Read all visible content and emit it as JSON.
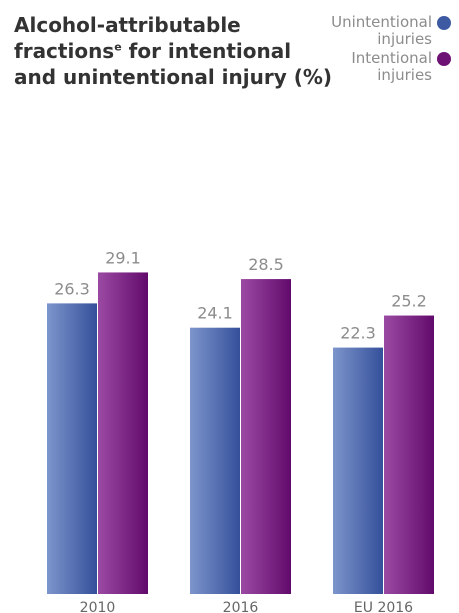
{
  "title_main": "Alcohol-attributable fractions",
  "title_sup": "e",
  "title_rest": " for intentional and unintentional injury (%)",
  "legend": [
    {
      "label": "Unintentional injuries",
      "color": "#3d5aa3"
    },
    {
      "label": "Intentional injuries",
      "color": "#6d1175"
    }
  ],
  "chart_data": {
    "type": "bar",
    "categories": [
      "2010",
      "2016",
      "EU 2016"
    ],
    "series": [
      {
        "name": "Unintentional injuries",
        "values": [
          26.3,
          24.1,
          22.3
        ],
        "color": "#3d5aa3"
      },
      {
        "name": "Intentional injuries",
        "values": [
          29.1,
          28.5,
          25.2
        ],
        "color": "#6d1175"
      }
    ],
    "ylim": [
      0,
      40
    ],
    "grid": false,
    "legend_position": "top-right",
    "xlabel": "",
    "ylabel": ""
  }
}
